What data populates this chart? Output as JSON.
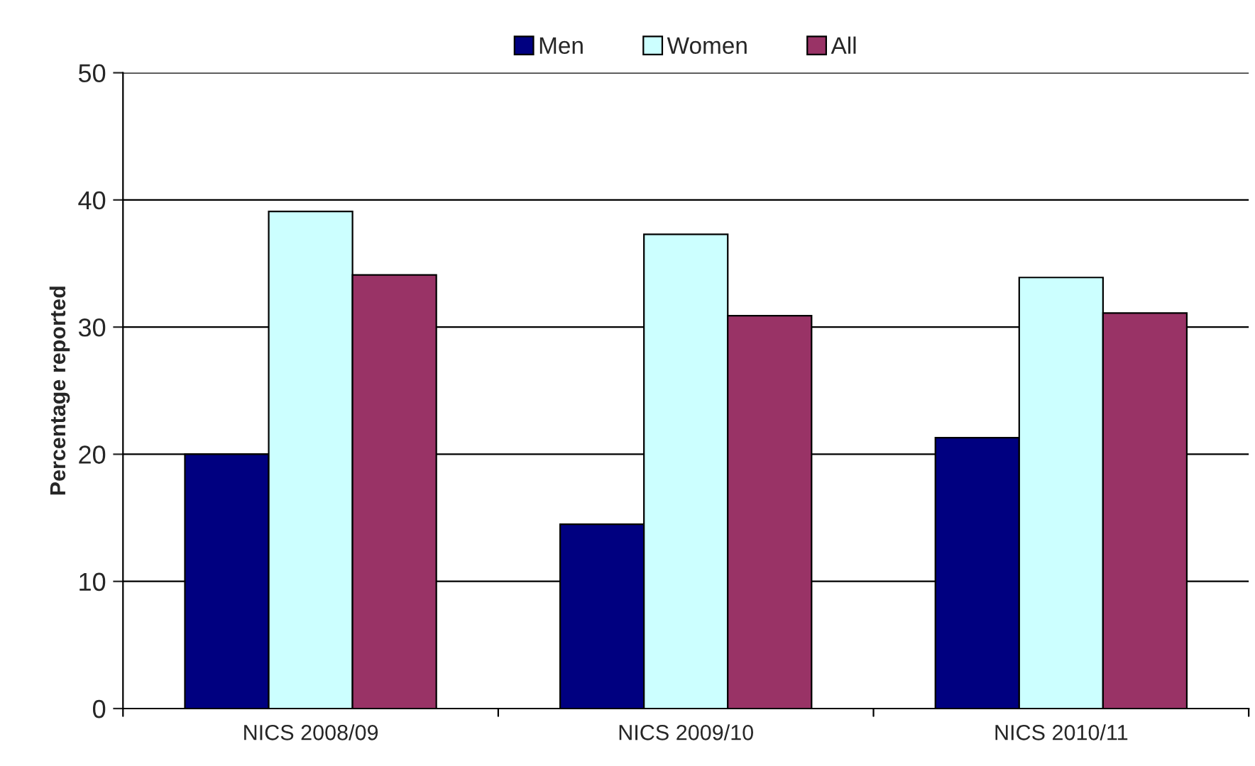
{
  "chart_data": {
    "type": "bar",
    "ylabel": "Percentage reported",
    "categories": [
      "NICS 2008/09",
      "NICS 2009/10",
      "NICS 2010/11"
    ],
    "series": [
      {
        "name": "Men",
        "color": "#000080",
        "values": [
          20.0,
          14.5,
          21.3
        ]
      },
      {
        "name": "Women",
        "color": "#ccffff",
        "values": [
          39.1,
          37.3,
          33.9
        ]
      },
      {
        "name": "All",
        "color": "#993366",
        "values": [
          34.1,
          30.9,
          31.1
        ]
      }
    ],
    "ylim": [
      0,
      50
    ],
    "yticks": [
      0,
      10,
      20,
      30,
      40,
      50
    ],
    "grid": "y",
    "legend": "top"
  }
}
